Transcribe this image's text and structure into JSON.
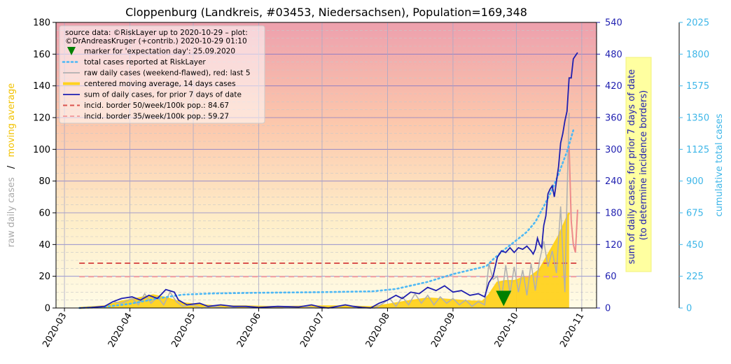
{
  "chart_data": {
    "type": "line",
    "title": "Cloppenburg (Landkreis, #03453, Niedersachsen), Population=169,348",
    "x_ticks": [
      "2020-03",
      "2020-04",
      "2020-05",
      "2020-06",
      "2020-07",
      "2020-08",
      "2020-09",
      "2020-10",
      "2020-11"
    ],
    "x_range": [
      "2020-02-26",
      "2020-11-08"
    ],
    "left_axis": {
      "label_part1": "raw daily cases",
      "label_sep": "/",
      "label_part2": "moving average",
      "ylim": [
        0,
        180
      ],
      "ticks": [
        0,
        20,
        40,
        60,
        80,
        100,
        120,
        140,
        160,
        180
      ]
    },
    "right_axis_1": {
      "label_line1": "sum of daily cases, for prior 7 days of date",
      "label_line2": "(to determine incidence borders)",
      "ylim": [
        0,
        540
      ],
      "ticks": [
        0,
        60,
        120,
        180,
        240,
        300,
        360,
        420,
        480,
        540
      ]
    },
    "right_axis_2": {
      "label": "cumulative total cases",
      "ylim": [
        0,
        2025
      ],
      "ticks": [
        0,
        225,
        450,
        675,
        900,
        1125,
        1350,
        1575,
        1800,
        2025
      ]
    },
    "legend": {
      "source_line1": "source data: ©RiskLayer up to 2020-10-29 – plot:",
      "source_line2": "©DrAndreasKruger (+contrib.) 2020-10-29 01:10",
      "items": [
        {
          "label": "marker for 'expectation day': 25.09.2020",
          "kind": "marker",
          "color": "#008000"
        },
        {
          "label": "total cases reported at RiskLayer",
          "kind": "dotted",
          "color": "#4db8f5"
        },
        {
          "label": "raw daily cases (weekend-flawed), red: last 5",
          "kind": "line",
          "color": "#b0b0b0"
        },
        {
          "label": "centered moving average, 14 days cases",
          "kind": "thick",
          "color": "#ffd21f"
        },
        {
          "label": "sum of daily cases, for prior 7 days of date",
          "kind": "line",
          "color": "#1f1fb0"
        },
        {
          "label": "incid. border 50/week/100k pop.: 84.67",
          "kind": "dashed",
          "color": "#d9534f"
        },
        {
          "label": "incid. border 35/week/100k pop.: 59.27",
          "kind": "dashed",
          "color": "#f4a0a0"
        }
      ]
    },
    "expectation_day": {
      "date": "2020-09-25",
      "value": 6
    },
    "incidence_borders": {
      "border50": 84.67,
      "border35": 59.27
    },
    "series": {
      "weekly_sum": [
        [
          "2020-03-08",
          0
        ],
        [
          "2020-03-14",
          1
        ],
        [
          "2020-03-20",
          3
        ],
        [
          "2020-03-24",
          12
        ],
        [
          "2020-03-28",
          18
        ],
        [
          "2020-04-02",
          21
        ],
        [
          "2020-04-06",
          15
        ],
        [
          "2020-04-10",
          24
        ],
        [
          "2020-04-14",
          18
        ],
        [
          "2020-04-18",
          35
        ],
        [
          "2020-04-22",
          30
        ],
        [
          "2020-04-24",
          15
        ],
        [
          "2020-04-28",
          6
        ],
        [
          "2020-05-04",
          9
        ],
        [
          "2020-05-08",
          3
        ],
        [
          "2020-05-14",
          6
        ],
        [
          "2020-05-20",
          3
        ],
        [
          "2020-05-26",
          3
        ],
        [
          "2020-06-01",
          1
        ],
        [
          "2020-06-10",
          3
        ],
        [
          "2020-06-20",
          2
        ],
        [
          "2020-06-26",
          6
        ],
        [
          "2020-06-30",
          2
        ],
        [
          "2020-07-04",
          0
        ],
        [
          "2020-07-08",
          3
        ],
        [
          "2020-07-12",
          6
        ],
        [
          "2020-07-16",
          3
        ],
        [
          "2020-07-20",
          1
        ],
        [
          "2020-07-24",
          0
        ],
        [
          "2020-07-28",
          9
        ],
        [
          "2020-08-01",
          15
        ],
        [
          "2020-08-05",
          24
        ],
        [
          "2020-08-08",
          18
        ],
        [
          "2020-08-12",
          30
        ],
        [
          "2020-08-16",
          27
        ],
        [
          "2020-08-20",
          39
        ],
        [
          "2020-08-24",
          33
        ],
        [
          "2020-08-28",
          42
        ],
        [
          "2020-09-01",
          30
        ],
        [
          "2020-09-05",
          33
        ],
        [
          "2020-09-09",
          24
        ],
        [
          "2020-09-13",
          27
        ],
        [
          "2020-09-16",
          21
        ],
        [
          "2020-09-18",
          48
        ],
        [
          "2020-09-20",
          60
        ],
        [
          "2020-09-22",
          96
        ],
        [
          "2020-09-24",
          108
        ],
        [
          "2020-09-26",
          105
        ],
        [
          "2020-09-28",
          114
        ],
        [
          "2020-09-30",
          105
        ],
        [
          "2020-10-02",
          114
        ],
        [
          "2020-10-04",
          111
        ],
        [
          "2020-10-06",
          117
        ],
        [
          "2020-10-08",
          108
        ],
        [
          "2020-10-09",
          102
        ],
        [
          "2020-10-10",
          111
        ],
        [
          "2020-10-11",
          132
        ],
        [
          "2020-10-12",
          120
        ],
        [
          "2020-10-13",
          114
        ],
        [
          "2020-10-14",
          156
        ],
        [
          "2020-10-15",
          174
        ],
        [
          "2020-10-16",
          216
        ],
        [
          "2020-10-17",
          225
        ],
        [
          "2020-10-18",
          231
        ],
        [
          "2020-10-19",
          210
        ],
        [
          "2020-10-20",
          240
        ],
        [
          "2020-10-21",
          267
        ],
        [
          "2020-10-22",
          312
        ],
        [
          "2020-10-23",
          330
        ],
        [
          "2020-10-24",
          354
        ],
        [
          "2020-10-25",
          372
        ],
        [
          "2020-10-26",
          435
        ],
        [
          "2020-10-27",
          435
        ],
        [
          "2020-10-28",
          471
        ],
        [
          "2020-10-29",
          477
        ],
        [
          "2020-10-30",
          483
        ]
      ],
      "raw_daily": [
        [
          "2020-03-08",
          0
        ],
        [
          "2020-03-14",
          0
        ],
        [
          "2020-03-20",
          1
        ],
        [
          "2020-03-24",
          4
        ],
        [
          "2020-03-28",
          3
        ],
        [
          "2020-04-02",
          6
        ],
        [
          "2020-04-05",
          2
        ],
        [
          "2020-04-08",
          9
        ],
        [
          "2020-04-11",
          3
        ],
        [
          "2020-04-14",
          7
        ],
        [
          "2020-04-17",
          2
        ],
        [
          "2020-04-20",
          10
        ],
        [
          "2020-04-23",
          4
        ],
        [
          "2020-04-26",
          1
        ],
        [
          "2020-04-30",
          2
        ],
        [
          "2020-05-05",
          0
        ],
        [
          "2020-05-10",
          1
        ],
        [
          "2020-05-16",
          0
        ],
        [
          "2020-05-24",
          1
        ],
        [
          "2020-06-02",
          0
        ],
        [
          "2020-06-12",
          0
        ],
        [
          "2020-06-22",
          1
        ],
        [
          "2020-06-28",
          0
        ],
        [
          "2020-07-06",
          0
        ],
        [
          "2020-07-12",
          2
        ],
        [
          "2020-07-18",
          0
        ],
        [
          "2020-07-26",
          0
        ],
        [
          "2020-07-30",
          3
        ],
        [
          "2020-08-02",
          6
        ],
        [
          "2020-08-05",
          1
        ],
        [
          "2020-08-08",
          7
        ],
        [
          "2020-08-11",
          2
        ],
        [
          "2020-08-14",
          9
        ],
        [
          "2020-08-17",
          3
        ],
        [
          "2020-08-20",
          8
        ],
        [
          "2020-08-23",
          2
        ],
        [
          "2020-08-26",
          7
        ],
        [
          "2020-08-29",
          3
        ],
        [
          "2020-09-01",
          6
        ],
        [
          "2020-09-04",
          2
        ],
        [
          "2020-09-07",
          5
        ],
        [
          "2020-09-10",
          1
        ],
        [
          "2020-09-13",
          4
        ],
        [
          "2020-09-16",
          2
        ],
        [
          "2020-09-18",
          28
        ],
        [
          "2020-09-20",
          18
        ],
        [
          "2020-09-22",
          20
        ],
        [
          "2020-09-24",
          6
        ],
        [
          "2020-09-26",
          27
        ],
        [
          "2020-09-28",
          9
        ],
        [
          "2020-09-30",
          26
        ],
        [
          "2020-10-02",
          10
        ],
        [
          "2020-10-04",
          24
        ],
        [
          "2020-10-06",
          8
        ],
        [
          "2020-10-08",
          28
        ],
        [
          "2020-10-10",
          11
        ],
        [
          "2020-10-12",
          30
        ],
        [
          "2020-10-14",
          42
        ],
        [
          "2020-10-16",
          26
        ],
        [
          "2020-10-18",
          36
        ],
        [
          "2020-10-20",
          22
        ],
        [
          "2020-10-22",
          64
        ],
        [
          "2020-10-23",
          34
        ],
        [
          "2020-10-24",
          10
        ],
        [
          "2020-10-25",
          70
        ],
        [
          "2020-10-26",
          123
        ]
      ],
      "raw_daily_last5": [
        [
          "2020-10-26",
          102
        ],
        [
          "2020-10-27",
          55
        ],
        [
          "2020-10-28",
          40
        ],
        [
          "2020-10-29",
          35
        ],
        [
          "2020-10-30",
          62
        ]
      ],
      "moving_average": [
        [
          "2020-03-08",
          0
        ],
        [
          "2020-03-20",
          1
        ],
        [
          "2020-03-28",
          4
        ],
        [
          "2020-04-05",
          6
        ],
        [
          "2020-04-12",
          8
        ],
        [
          "2020-04-19",
          6
        ],
        [
          "2020-04-26",
          3
        ],
        [
          "2020-05-03",
          2
        ],
        [
          "2020-05-12",
          1
        ],
        [
          "2020-05-26",
          1
        ],
        [
          "2020-06-10",
          0.5
        ],
        [
          "2020-06-26",
          1
        ],
        [
          "2020-07-10",
          1
        ],
        [
          "2020-07-24",
          0.5
        ],
        [
          "2020-08-01",
          2
        ],
        [
          "2020-08-10",
          4
        ],
        [
          "2020-08-20",
          6
        ],
        [
          "2020-09-01",
          5
        ],
        [
          "2020-09-10",
          4
        ],
        [
          "2020-09-15",
          4
        ],
        [
          "2020-09-18",
          8
        ],
        [
          "2020-09-22",
          16
        ],
        [
          "2020-09-26",
          17
        ],
        [
          "2020-09-30",
          17
        ],
        [
          "2020-10-04",
          19
        ],
        [
          "2020-10-08",
          20
        ],
        [
          "2020-10-12",
          24
        ],
        [
          "2020-10-15",
          31
        ],
        [
          "2020-10-18",
          38
        ],
        [
          "2020-10-21",
          45
        ],
        [
          "2020-10-24",
          54
        ],
        [
          "2020-10-26",
          60
        ]
      ],
      "cumulative": [
        [
          "2020-03-08",
          0
        ],
        [
          "2020-03-20",
          8
        ],
        [
          "2020-04-01",
          30
        ],
        [
          "2020-04-15",
          70
        ],
        [
          "2020-04-26",
          95
        ],
        [
          "2020-05-10",
          103
        ],
        [
          "2020-06-01",
          108
        ],
        [
          "2020-06-30",
          112
        ],
        [
          "2020-07-25",
          118
        ],
        [
          "2020-08-05",
          135
        ],
        [
          "2020-08-20",
          185
        ],
        [
          "2020-09-01",
          240
        ],
        [
          "2020-09-15",
          290
        ],
        [
          "2020-09-17",
          300
        ],
        [
          "2020-09-20",
          345
        ],
        [
          "2020-09-25",
          410
        ],
        [
          "2020-10-01",
          480
        ],
        [
          "2020-10-06",
          540
        ],
        [
          "2020-10-10",
          610
        ],
        [
          "2020-10-14",
          720
        ],
        [
          "2020-10-18",
          840
        ],
        [
          "2020-10-21",
          950
        ],
        [
          "2020-10-25",
          1110
        ],
        [
          "2020-10-28",
          1260
        ]
      ]
    }
  }
}
